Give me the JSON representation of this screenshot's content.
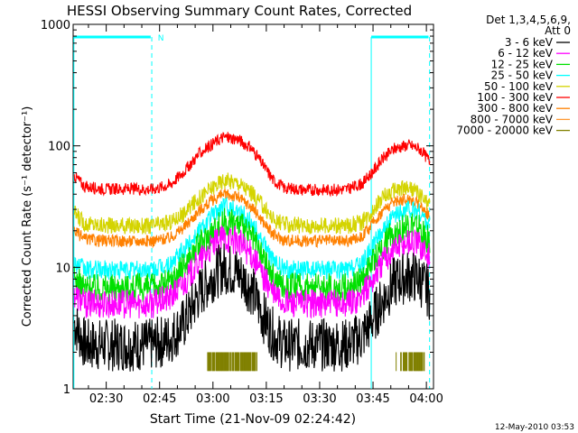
{
  "chart_data": {
    "type": "line",
    "title": "HESSI Observing Summary Count Rates, Corrected",
    "xlabel": "Start Time (21-Nov-09 02:24:42)",
    "ylabel": "Corrected Count Rate (s⁻¹ detector⁻¹)",
    "y_scale": "log",
    "ylim": [
      1,
      1000
    ],
    "y_ticks": [
      {
        "value": 1,
        "label": "1"
      },
      {
        "value": 10,
        "label": "10"
      },
      {
        "value": 100,
        "label": "100"
      },
      {
        "value": 1000,
        "label": "1000"
      }
    ],
    "xlim_minutes": [
      140.7,
      242.0
    ],
    "x_ticks": [
      {
        "value": 150,
        "label": "02:30"
      },
      {
        "value": 165,
        "label": "02:45"
      },
      {
        "value": 180,
        "label": "03:00"
      },
      {
        "value": 195,
        "label": "03:15"
      },
      {
        "value": 210,
        "label": "03:30"
      },
      {
        "value": 225,
        "label": "03:45"
      },
      {
        "value": 240,
        "label": "04:00"
      }
    ],
    "legend_header": [
      "Det 1,3,4,5,6,9,",
      "Att 0"
    ],
    "legend_position": "right",
    "series": [
      {
        "name": "3 - 6 keV",
        "color": "#000000",
        "points": [
          [
            141,
            3.5
          ],
          [
            144,
            2.3
          ],
          [
            150,
            2.3
          ],
          [
            157,
            2.3
          ],
          [
            163,
            2.3
          ],
          [
            168,
            2.6
          ],
          [
            172,
            3.5
          ],
          [
            176,
            6
          ],
          [
            180,
            8.5
          ],
          [
            183,
            10
          ],
          [
            187,
            9
          ],
          [
            191,
            6.5
          ],
          [
            194,
            4
          ],
          [
            197,
            2.8
          ],
          [
            200,
            2.3
          ],
          [
            206,
            2.3
          ],
          [
            213,
            2.3
          ],
          [
            218,
            2.3
          ],
          [
            222,
            2.7
          ],
          [
            225,
            3.8
          ],
          [
            228,
            5.5
          ],
          [
            231,
            7.5
          ],
          [
            235,
            8.5
          ],
          [
            238,
            8
          ],
          [
            241,
            6
          ]
        ]
      },
      {
        "name": "6 - 12 keV",
        "color": "#ff00ff",
        "points": [
          [
            141,
            6
          ],
          [
            144,
            5
          ],
          [
            150,
            5
          ],
          [
            157,
            5
          ],
          [
            163,
            5
          ],
          [
            168,
            5.6
          ],
          [
            172,
            7.5
          ],
          [
            176,
            11
          ],
          [
            180,
            15
          ],
          [
            183,
            17.5
          ],
          [
            187,
            16.5
          ],
          [
            191,
            12.5
          ],
          [
            194,
            8.5
          ],
          [
            197,
            6
          ],
          [
            200,
            5.1
          ],
          [
            206,
            5
          ],
          [
            213,
            5
          ],
          [
            218,
            5
          ],
          [
            222,
            5.8
          ],
          [
            225,
            8
          ],
          [
            228,
            11.5
          ],
          [
            231,
            14.5
          ],
          [
            235,
            16.5
          ],
          [
            238,
            15.5
          ],
          [
            241,
            12
          ]
        ]
      },
      {
        "name": "12 - 25 keV",
        "color": "#00e000",
        "points": [
          [
            141,
            8
          ],
          [
            144,
            6.8
          ],
          [
            150,
            6.8
          ],
          [
            157,
            6.8
          ],
          [
            163,
            6.8
          ],
          [
            168,
            7.6
          ],
          [
            172,
            10.5
          ],
          [
            176,
            15
          ],
          [
            180,
            20
          ],
          [
            183,
            24
          ],
          [
            187,
            23
          ],
          [
            191,
            17.5
          ],
          [
            194,
            12
          ],
          [
            197,
            8.2
          ],
          [
            200,
            7
          ],
          [
            206,
            6.8
          ],
          [
            213,
            6.8
          ],
          [
            218,
            6.8
          ],
          [
            222,
            7.8
          ],
          [
            225,
            11
          ],
          [
            228,
            15.5
          ],
          [
            231,
            19.5
          ],
          [
            235,
            22.5
          ],
          [
            238,
            21
          ],
          [
            241,
            16
          ]
        ]
      },
      {
        "name": "25 - 50 keV",
        "color": "#00ffff",
        "points": [
          [
            141,
            11
          ],
          [
            144,
            9.5
          ],
          [
            150,
            9.5
          ],
          [
            157,
            9.5
          ],
          [
            163,
            9.5
          ],
          [
            168,
            10.5
          ],
          [
            172,
            14
          ],
          [
            176,
            20
          ],
          [
            180,
            27
          ],
          [
            183,
            32
          ],
          [
            187,
            30
          ],
          [
            191,
            23
          ],
          [
            194,
            16
          ],
          [
            197,
            11.2
          ],
          [
            200,
            9.7
          ],
          [
            206,
            9.5
          ],
          [
            213,
            9.5
          ],
          [
            218,
            9.5
          ],
          [
            222,
            10.8
          ],
          [
            225,
            15
          ],
          [
            228,
            21
          ],
          [
            231,
            26
          ],
          [
            235,
            30
          ],
          [
            238,
            28
          ],
          [
            241,
            22
          ]
        ]
      },
      {
        "name": "50 - 100 keV",
        "color": "#d4d400",
        "points": [
          [
            141,
            28
          ],
          [
            144,
            23
          ],
          [
            150,
            22
          ],
          [
            157,
            22
          ],
          [
            163,
            22
          ],
          [
            168,
            23.5
          ],
          [
            172,
            28
          ],
          [
            176,
            37
          ],
          [
            180,
            46
          ],
          [
            183,
            52
          ],
          [
            187,
            50
          ],
          [
            191,
            41
          ],
          [
            194,
            32
          ],
          [
            197,
            25
          ],
          [
            200,
            22.5
          ],
          [
            206,
            22
          ],
          [
            213,
            22
          ],
          [
            218,
            22
          ],
          [
            222,
            23.5
          ],
          [
            225,
            30
          ],
          [
            228,
            38
          ],
          [
            231,
            43
          ],
          [
            235,
            45
          ],
          [
            238,
            40
          ],
          [
            241,
            32
          ]
        ]
      },
      {
        "name": "100 - 300 keV",
        "color": "#ff0000",
        "points": [
          [
            141,
            57
          ],
          [
            144,
            46
          ],
          [
            150,
            44
          ],
          [
            157,
            44
          ],
          [
            163,
            44
          ],
          [
            168,
            48
          ],
          [
            172,
            62
          ],
          [
            176,
            85
          ],
          [
            180,
            105
          ],
          [
            183,
            118
          ],
          [
            187,
            114
          ],
          [
            191,
            94
          ],
          [
            194,
            70
          ],
          [
            197,
            52
          ],
          [
            200,
            45
          ],
          [
            206,
            43.5
          ],
          [
            213,
            43.5
          ],
          [
            218,
            44
          ],
          [
            222,
            49
          ],
          [
            225,
            62
          ],
          [
            228,
            80
          ],
          [
            231,
            95
          ],
          [
            235,
            102
          ],
          [
            238,
            95
          ],
          [
            241,
            75
          ]
        ]
      },
      {
        "name": "300 - 800 keV",
        "color": "#ff8000",
        "points": [
          [
            141,
            20
          ],
          [
            144,
            17
          ],
          [
            150,
            16.5
          ],
          [
            157,
            16.5
          ],
          [
            163,
            16.5
          ],
          [
            168,
            17.5
          ],
          [
            172,
            21.5
          ],
          [
            176,
            29
          ],
          [
            180,
            36
          ],
          [
            183,
            40
          ],
          [
            187,
            38
          ],
          [
            191,
            31
          ],
          [
            194,
            24
          ],
          [
            197,
            18.5
          ],
          [
            200,
            16.8
          ],
          [
            206,
            16.5
          ],
          [
            213,
            16.5
          ],
          [
            218,
            16.5
          ],
          [
            222,
            18
          ],
          [
            225,
            23
          ],
          [
            228,
            30
          ],
          [
            231,
            35
          ],
          [
            235,
            37
          ],
          [
            238,
            33
          ],
          [
            241,
            26
          ]
        ]
      },
      {
        "name": "800 - 7000 keV",
        "color": "#ff9933",
        "points": []
      },
      {
        "name": "7000 - 20000 keV",
        "color": "#808000",
        "points": [
          [
            179,
            1.5
          ],
          [
            180,
            2.0
          ],
          [
            182,
            1.4
          ],
          [
            184,
            2.0
          ],
          [
            186,
            1.5
          ],
          [
            188,
            2.0
          ],
          [
            190,
            1.6
          ],
          [
            192,
            2.0
          ],
          [
            232,
            1.5
          ],
          [
            233,
            2.0
          ],
          [
            235,
            1.4
          ],
          [
            236,
            2.0
          ],
          [
            238,
            1.5
          ],
          [
            239,
            2.0
          ]
        ]
      }
    ],
    "annotations": [
      {
        "text": "N",
        "color": "#00ffff"
      }
    ]
  },
  "footer": {
    "timestamp": "12-May-2010 03:53"
  }
}
